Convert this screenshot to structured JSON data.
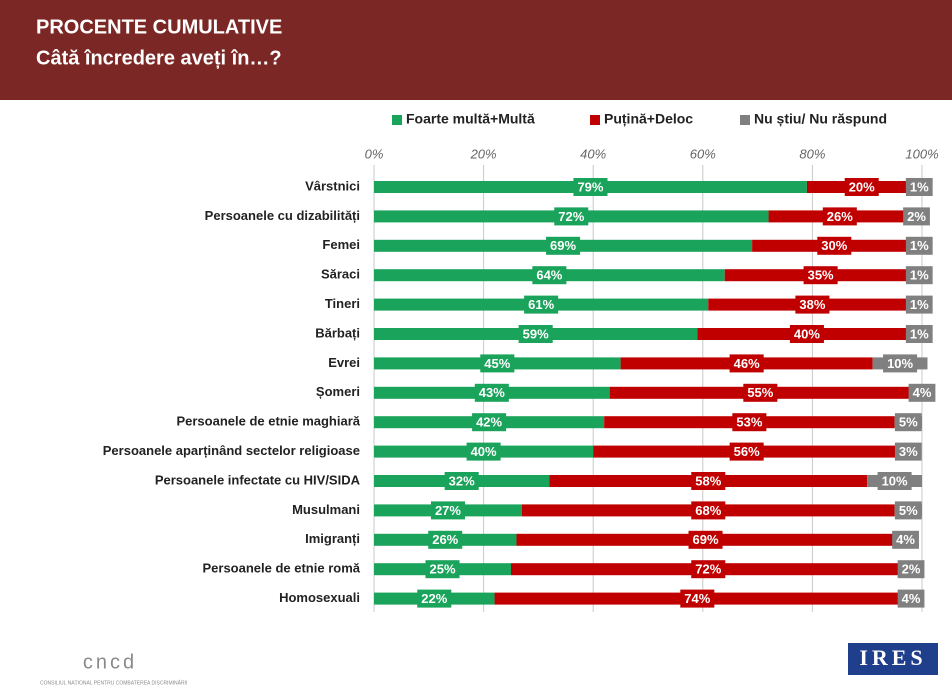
{
  "chart_data": {
    "type": "stacked-bar-horizontal",
    "title": "PROCENTE CUMULATIVE",
    "subtitle": "Câtă încredere aveți în…?",
    "categories": [
      "Vârstnici",
      "Persoanele cu dizabilități",
      "Femei",
      "Săraci",
      "Tineri",
      "Bărbați",
      "Evrei",
      "Șomeri",
      "Persoanele de etnie maghiară",
      "Persoanele aparținând sectelor religioase",
      "Persoanele infectate cu HIV/SIDA",
      "Musulmani",
      "Imigranți",
      "Persoanele de etnie romă",
      "Homosexuali"
    ],
    "series": [
      {
        "name": "Foarte multă+Multă",
        "color": "#1aa35a",
        "values": [
          79,
          72,
          69,
          64,
          61,
          59,
          45,
          43,
          42,
          40,
          32,
          27,
          26,
          25,
          22
        ],
        "value_labels": [
          "79%",
          "72%",
          "69%",
          "64%",
          "61%",
          "59%",
          "45%",
          "43%",
          "42%",
          "40%",
          "32%",
          "27%",
          "26%",
          "25%",
          "22%"
        ]
      },
      {
        "name": "Puțină+Deloc",
        "color": "#c00000",
        "values": [
          20,
          26,
          30,
          35,
          38,
          40,
          46,
          55,
          53,
          56,
          58,
          68,
          69,
          72,
          74
        ],
        "value_labels": [
          "20%",
          "26%",
          "30%",
          "35%",
          "38%",
          "40%",
          "46%",
          "55%",
          "53%",
          "56%",
          "58%",
          "68%",
          "69%",
          "72%",
          "74%"
        ]
      },
      {
        "name": "Nu știu/ Nu răspund",
        "color": "#808080",
        "values": [
          1,
          2,
          1,
          1,
          1,
          1,
          10,
          4,
          5,
          3,
          10,
          5,
          4,
          2,
          4
        ],
        "value_labels": [
          "1%",
          "2%",
          "1%",
          "1%",
          "1%",
          "1%",
          "10%",
          "4%",
          "5%",
          "3%",
          "10%",
          "5%",
          "4%",
          "2%",
          "4%"
        ]
      }
    ],
    "xlim": [
      0,
      100
    ],
    "xticks": [
      {
        "value": 0,
        "label": "0%"
      },
      {
        "value": 20,
        "label": "20%"
      },
      {
        "value": 40,
        "label": "40%"
      },
      {
        "value": 60,
        "label": "60%"
      },
      {
        "value": 80,
        "label": "80%"
      },
      {
        "value": 100,
        "label": "100%"
      }
    ],
    "grid": true,
    "legend": "top"
  },
  "footer": {
    "left_logo": "cncd",
    "left_caption": "CONSILIUL NAȚIONAL PENTRU COMBATEREA DISCRIMINĂRII",
    "right_logo": "IRES"
  }
}
